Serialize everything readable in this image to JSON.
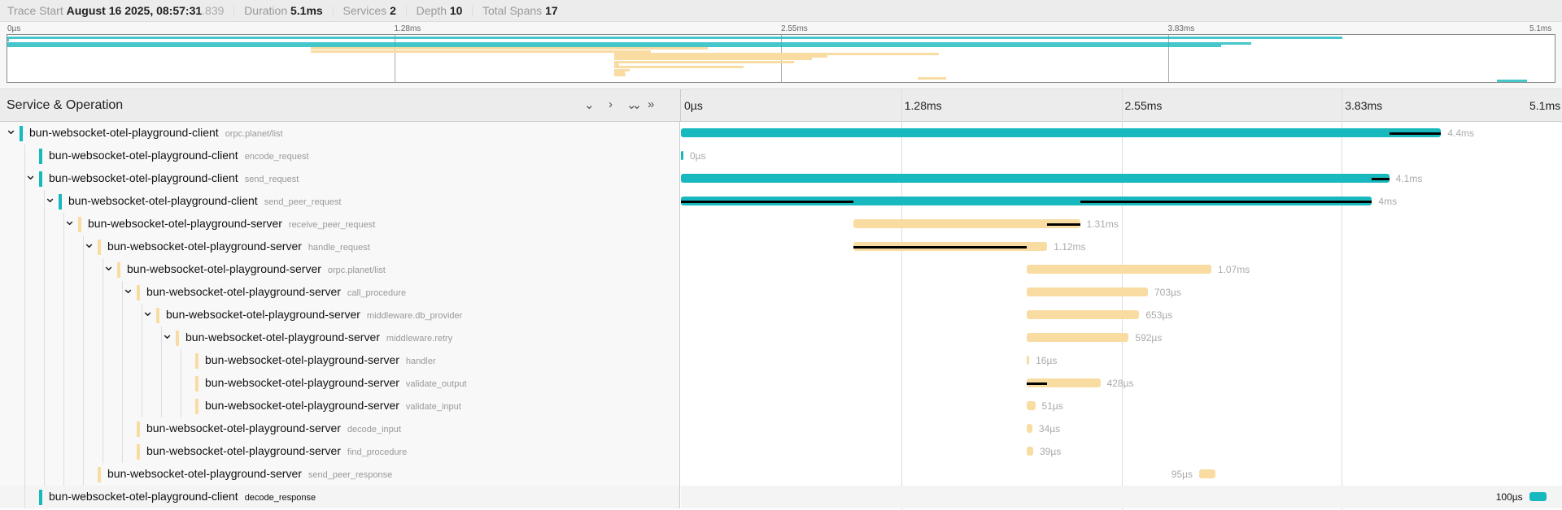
{
  "header": {
    "trace_start_label": "Trace Start",
    "trace_start_value": "August 16 2025, 08:57:31",
    "trace_start_ms": ".839",
    "duration_label": "Duration",
    "duration_value": "5.1ms",
    "services_label": "Services",
    "services_value": "2",
    "depth_label": "Depth",
    "depth_value": "10",
    "total_spans_label": "Total Spans",
    "total_spans_value": "17"
  },
  "timeline": {
    "total_ms": 5.1,
    "ticks": [
      "0µs",
      "1.28ms",
      "2.55ms",
      "3.83ms",
      "5.1ms"
    ]
  },
  "table": {
    "column_title": "Service & Operation",
    "buttons": {
      "collapse_one": "⌄",
      "expand_one": "›",
      "collapse_all": "⌄⌄",
      "expand_all": "»"
    }
  },
  "colors": {
    "client": "#17b8be",
    "server": "#f8dca1",
    "critical": "#000000"
  },
  "spans": [
    {
      "service": "bun-websocket-otel-playground-client",
      "op": "orpc.planet/list",
      "svc": "client",
      "depth": 0,
      "start": 0,
      "dur": 4.4,
      "label": "4.4ms",
      "chev": true,
      "crit": [
        [
          4.1,
          4.4
        ]
      ]
    },
    {
      "service": "bun-websocket-otel-playground-client",
      "op": "encode_request",
      "svc": "client",
      "depth": 1,
      "start": 0,
      "dur": 0,
      "label": "0µs",
      "chev": false,
      "crit": []
    },
    {
      "service": "bun-websocket-otel-playground-client",
      "op": "send_request",
      "svc": "client",
      "depth": 1,
      "start": 0,
      "dur": 4.1,
      "label": "4.1ms",
      "chev": true,
      "crit": [
        [
          4.0,
          4.1
        ]
      ]
    },
    {
      "service": "bun-websocket-otel-playground-client",
      "op": "send_peer_request",
      "svc": "client",
      "depth": 2,
      "start": 0,
      "dur": 4.0,
      "label": "4ms",
      "chev": true,
      "crit": [
        [
          0,
          1.0
        ],
        [
          2.31,
          4.0
        ]
      ]
    },
    {
      "service": "bun-websocket-otel-playground-server",
      "op": "receive_peer_request",
      "svc": "server",
      "depth": 3,
      "start": 1.0,
      "dur": 1.31,
      "label": "1.31ms",
      "chev": true,
      "crit": [
        [
          2.12,
          2.31
        ]
      ]
    },
    {
      "service": "bun-websocket-otel-playground-server",
      "op": "handle_request",
      "svc": "server",
      "depth": 4,
      "start": 1.0,
      "dur": 1.12,
      "label": "1.12ms",
      "chev": true,
      "crit": [
        [
          1.0,
          2.0
        ]
      ]
    },
    {
      "service": "bun-websocket-otel-playground-server",
      "op": "orpc.planet/list",
      "svc": "server",
      "depth": 5,
      "start": 2.0,
      "dur": 1.07,
      "label": "1.07ms",
      "chev": true,
      "crit": []
    },
    {
      "service": "bun-websocket-otel-playground-server",
      "op": "call_procedure",
      "svc": "server",
      "depth": 6,
      "start": 2.0,
      "dur": 0.703,
      "label": "703µs",
      "chev": true,
      "crit": []
    },
    {
      "service": "bun-websocket-otel-playground-server",
      "op": "middleware.db_provider",
      "svc": "server",
      "depth": 7,
      "start": 2.0,
      "dur": 0.653,
      "label": "653µs",
      "chev": true,
      "crit": []
    },
    {
      "service": "bun-websocket-otel-playground-server",
      "op": "middleware.retry",
      "svc": "server",
      "depth": 8,
      "start": 2.0,
      "dur": 0.592,
      "label": "592µs",
      "chev": true,
      "crit": []
    },
    {
      "service": "bun-websocket-otel-playground-server",
      "op": "handler",
      "svc": "server",
      "depth": 9,
      "start": 2.0,
      "dur": 0.016,
      "label": "16µs",
      "chev": false,
      "crit": []
    },
    {
      "service": "bun-websocket-otel-playground-server",
      "op": "validate_output",
      "svc": "server",
      "depth": 9,
      "start": 2.0,
      "dur": 0.428,
      "label": "428µs",
      "chev": false,
      "crit": [
        [
          2.0,
          2.12
        ]
      ]
    },
    {
      "service": "bun-websocket-otel-playground-server",
      "op": "validate_input",
      "svc": "server",
      "depth": 9,
      "start": 2.0,
      "dur": 0.051,
      "label": "51µs",
      "chev": false,
      "crit": []
    },
    {
      "service": "bun-websocket-otel-playground-server",
      "op": "decode_input",
      "svc": "server",
      "depth": 6,
      "start": 2.0,
      "dur": 0.034,
      "label": "34µs",
      "chev": false,
      "crit": []
    },
    {
      "service": "bun-websocket-otel-playground-server",
      "op": "find_procedure",
      "svc": "server",
      "depth": 6,
      "start": 2.0,
      "dur": 0.039,
      "label": "39µs",
      "chev": false,
      "crit": []
    },
    {
      "service": "bun-websocket-otel-playground-server",
      "op": "send_peer_response",
      "svc": "server",
      "depth": 4,
      "start": 3.0,
      "dur": 0.095,
      "label": "95µs",
      "chev": false,
      "crit": [],
      "label_left": true
    },
    {
      "service": "bun-websocket-otel-playground-client",
      "op": "decode_response",
      "svc": "client",
      "depth": 1,
      "start": 4.91,
      "dur": 0.1,
      "label": "100µs",
      "chev": false,
      "crit": [],
      "label_left": true,
      "selected": true
    }
  ]
}
